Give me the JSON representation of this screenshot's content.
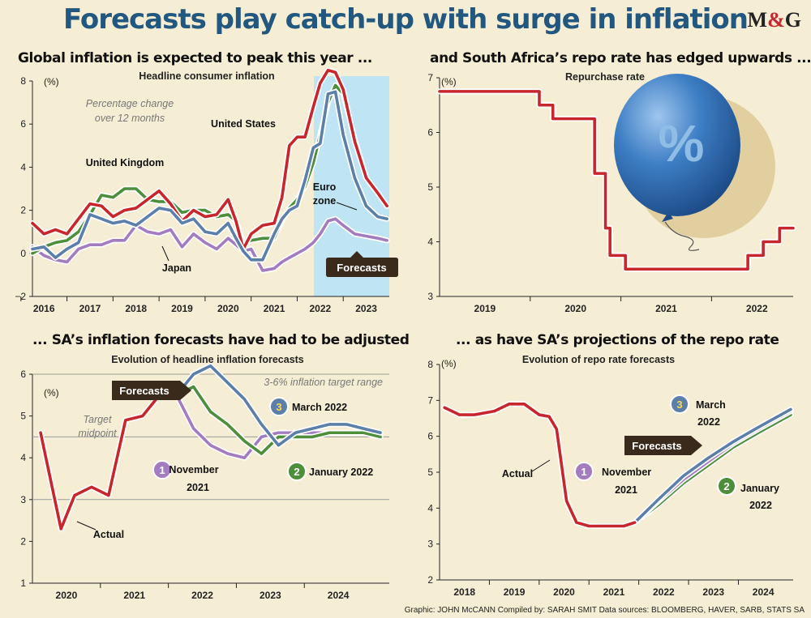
{
  "title": "Forecasts play catch-up with surge in inflation",
  "logo": {
    "m": "M",
    "amp": "&",
    "g": "G"
  },
  "credits": "Graphic: JOHN McCANN  Compiled by: SARAH SMIT  Data sources: BLOOMBERG, HAVER, SARB, STATS SA",
  "colors": {
    "background": "#f6eed4",
    "title": "#22587f",
    "red": "#c8262d",
    "blue": "#5b7fa8",
    "green": "#4d8e3b",
    "purple": "#a37cc0",
    "forecast_band": "#bfe4f4"
  },
  "panels": {
    "p1": {
      "heading": "Global inflation is expected to peak this year ...",
      "subtitle": "Headline consumer inflation",
      "unit": "(%)",
      "note1": "Percentage change",
      "note2": "over 12 months",
      "forecast_label": "Forecasts",
      "labels": {
        "uk": "United Kingdom",
        "us": "United States",
        "ez1": "Euro",
        "ez2": "zone",
        "jp": "Japan"
      },
      "y_ticks": [
        "8",
        "6",
        "4",
        "2",
        "0",
        "−2"
      ],
      "x_ticks": [
        "2016",
        "2017",
        "2018",
        "2019",
        "2020",
        "2021",
        "2022",
        "2023"
      ]
    },
    "p2": {
      "heading": "and South Africa’s repo rate has edged upwards ...",
      "subtitle": "Repurchase rate",
      "unit": "(%)",
      "balloon_symbol": "%",
      "y_ticks": [
        "7",
        "6",
        "5",
        "4",
        "3"
      ],
      "x_ticks": [
        "2019",
        "2020",
        "2021",
        "2022"
      ]
    },
    "p3": {
      "heading": "... SA’s inflation forecasts have had to be adjusted",
      "subtitle": "Evolution of headline inflation forecasts",
      "unit": "(%)",
      "target_range": "3-6% inflation target range",
      "midpoint1": "Target",
      "midpoint2": "midpoint",
      "forecast_label": "Forecasts",
      "actual_label": "Actual",
      "n1": "1",
      "n1a": "November",
      "n1b": "2021",
      "n2": "2",
      "n2a": "January 2022",
      "n3": "3",
      "n3a": "March 2022",
      "y_ticks": [
        "6",
        "5",
        "4",
        "3",
        "2",
        "1"
      ],
      "x_ticks": [
        "2020",
        "2021",
        "2022",
        "2023",
        "2024"
      ]
    },
    "p4": {
      "heading": "... as have SA’s projections of the repo rate",
      "subtitle": "Evolution of repo rate forecasts",
      "unit": "(%)",
      "forecast_label": "Forecasts",
      "actual_label": "Actual",
      "n1": "1",
      "n1a": "November",
      "n1b": "2021",
      "n2": "2",
      "n2a": "January",
      "n2b": "2022",
      "n3": "3",
      "n3a": "March",
      "n3b": "2022",
      "y_ticks": [
        "8",
        "7",
        "6",
        "5",
        "4",
        "3",
        "2"
      ],
      "x_ticks": [
        "2018",
        "2019",
        "2020",
        "2021",
        "2022",
        "2023",
        "2024"
      ]
    }
  },
  "chart_data": [
    {
      "type": "line",
      "title": "Global inflation is expected to peak this year ...",
      "subtitle": "Headline consumer inflation",
      "ylabel": "(%)",
      "ylim": [
        -2,
        8
      ],
      "xlim": [
        2015.75,
        2023.5
      ],
      "forecast_from": 2021.8,
      "series": [
        {
          "name": "United States",
          "x": [
            2015.75,
            2016,
            2016.25,
            2016.5,
            2016.75,
            2017,
            2017.25,
            2017.5,
            2017.75,
            2018,
            2018.25,
            2018.5,
            2018.75,
            2019,
            2019.25,
            2019.5,
            2019.75,
            2020,
            2020.17,
            2020.33,
            2020.5,
            2020.75,
            2021,
            2021.17,
            2021.33,
            2021.5,
            2021.67,
            2021.85,
            2022,
            2022.17,
            2022.33,
            2022.5,
            2022.75,
            2023,
            2023.25,
            2023.45
          ],
          "y": [
            1.4,
            0.9,
            1.1,
            0.9,
            1.6,
            2.3,
            2.2,
            1.7,
            2.0,
            2.1,
            2.5,
            2.9,
            2.3,
            1.5,
            2.0,
            1.7,
            1.8,
            2.5,
            1.5,
            0.2,
            0.9,
            1.3,
            1.4,
            2.6,
            5.0,
            5.4,
            5.4,
            6.8,
            7.9,
            8.5,
            8.4,
            7.6,
            5.2,
            3.5,
            2.8,
            2.2
          ]
        },
        {
          "name": "United Kingdom",
          "x": [
            2015.75,
            2016,
            2016.25,
            2016.5,
            2016.75,
            2017,
            2017.25,
            2017.5,
            2017.75,
            2018,
            2018.25,
            2018.5,
            2018.75,
            2019,
            2019.25,
            2019.5,
            2019.75,
            2020,
            2020.17,
            2020.33,
            2020.5,
            2020.75,
            2021,
            2021.17,
            2021.33,
            2021.5,
            2021.67,
            2021.85,
            2022,
            2022.17,
            2022.33,
            2022.5,
            2022.75,
            2023,
            2023.25,
            2023.45
          ],
          "y": [
            0.0,
            0.3,
            0.5,
            0.6,
            1.0,
            1.8,
            2.7,
            2.6,
            3.0,
            3.0,
            2.5,
            2.4,
            2.4,
            1.9,
            2.0,
            2.0,
            1.7,
            1.8,
            1.5,
            0.5,
            0.6,
            0.7,
            0.7,
            1.5,
            2.1,
            2.5,
            3.1,
            4.2,
            5.5,
            7.0,
            7.8,
            7.4,
            5.3,
            3.5,
            2.8,
            2.2
          ]
        },
        {
          "name": "Euro zone",
          "x": [
            2015.75,
            2016,
            2016.25,
            2016.5,
            2016.75,
            2017,
            2017.25,
            2017.5,
            2017.75,
            2018,
            2018.25,
            2018.5,
            2018.75,
            2019,
            2019.25,
            2019.5,
            2019.75,
            2020,
            2020.17,
            2020.33,
            2020.5,
            2020.75,
            2021,
            2021.17,
            2021.33,
            2021.5,
            2021.67,
            2021.85,
            2022,
            2022.17,
            2022.33,
            2022.5,
            2022.75,
            2023,
            2023.25,
            2023.45
          ],
          "y": [
            0.2,
            0.3,
            -0.2,
            0.2,
            0.5,
            1.8,
            1.6,
            1.4,
            1.5,
            1.3,
            1.7,
            2.1,
            2.0,
            1.4,
            1.6,
            1.0,
            0.9,
            1.4,
            0.7,
            0.1,
            -0.3,
            -0.3,
            0.9,
            1.6,
            2.0,
            2.2,
            3.4,
            4.9,
            5.1,
            7.4,
            7.5,
            5.5,
            3.5,
            2.2,
            1.7,
            1.6
          ]
        },
        {
          "name": "Japan",
          "x": [
            2015.75,
            2016,
            2016.25,
            2016.5,
            2016.75,
            2017,
            2017.25,
            2017.5,
            2017.75,
            2018,
            2018.25,
            2018.5,
            2018.75,
            2019,
            2019.25,
            2019.5,
            2019.75,
            2020,
            2020.17,
            2020.33,
            2020.5,
            2020.75,
            2021,
            2021.17,
            2021.33,
            2021.5,
            2021.67,
            2021.85,
            2022,
            2022.17,
            2022.33,
            2022.5,
            2022.75,
            2023,
            2023.25,
            2023.45
          ],
          "y": [
            0.3,
            -0.1,
            -0.3,
            -0.4,
            0.2,
            0.4,
            0.4,
            0.6,
            0.6,
            1.3,
            1.0,
            0.9,
            1.1,
            0.3,
            0.9,
            0.5,
            0.2,
            0.7,
            0.4,
            0.1,
            0.2,
            -0.8,
            -0.7,
            -0.4,
            -0.2,
            0.0,
            0.2,
            0.5,
            0.9,
            1.5,
            1.6,
            1.3,
            0.9,
            0.8,
            0.7,
            0.6
          ]
        }
      ]
    },
    {
      "type": "line",
      "title": "and South Africa’s repo rate has edged upwards ...",
      "subtitle": "Repurchase rate",
      "ylabel": "(%)",
      "ylim": [
        3,
        7
      ],
      "xlim": [
        2018.5,
        2022.4
      ],
      "series": [
        {
          "name": "Repurchase rate",
          "step": true,
          "x": [
            2018.5,
            2019.0,
            2019.6,
            2019.75,
            2020.04,
            2020.21,
            2020.33,
            2020.38,
            2020.55,
            2021.9,
            2022.07,
            2022.25,
            2022.4
          ],
          "y": [
            6.75,
            6.75,
            6.5,
            6.25,
            6.25,
            5.25,
            4.25,
            3.75,
            3.5,
            3.75,
            4.0,
            4.25,
            4.25
          ]
        }
      ]
    },
    {
      "type": "line",
      "title": "... SA’s inflation forecasts have had to be adjusted",
      "subtitle": "Evolution of headline inflation forecasts",
      "ylabel": "(%)",
      "ylim": [
        1,
        6
      ],
      "xlim": [
        2019.5,
        2024.75
      ],
      "annotations": [
        "3-6% inflation target range",
        "Target midpoint"
      ],
      "series": [
        {
          "name": "Actual",
          "x": [
            2019.62,
            2019.92,
            2020.12,
            2020.37,
            2020.62,
            2020.87,
            2021.12,
            2021.37,
            2021.62
          ],
          "y": [
            4.6,
            2.3,
            3.1,
            3.3,
            3.1,
            4.9,
            5.0,
            5.5,
            5.5
          ]
        },
        {
          "name": "November 2021",
          "x": [
            2021.62,
            2021.87,
            2022.12,
            2022.37,
            2022.62,
            2022.87,
            2023.12,
            2023.37,
            2023.62,
            2023.87,
            2024.12,
            2024.37,
            2024.62
          ],
          "y": [
            5.5,
            4.7,
            4.3,
            4.1,
            4.0,
            4.5,
            4.6,
            4.6,
            4.6,
            4.6,
            4.6,
            4.6,
            4.6
          ]
        },
        {
          "name": "January 2022",
          "x": [
            2021.62,
            2021.87,
            2022.12,
            2022.37,
            2022.62,
            2022.87,
            2023.12,
            2023.37,
            2023.62,
            2023.87,
            2024.12,
            2024.37,
            2024.62
          ],
          "y": [
            5.5,
            5.7,
            5.1,
            4.8,
            4.4,
            4.1,
            4.5,
            4.5,
            4.5,
            4.6,
            4.6,
            4.6,
            4.5
          ]
        },
        {
          "name": "March 2022",
          "x": [
            2021.62,
            2021.87,
            2022.12,
            2022.37,
            2022.62,
            2022.87,
            2023.12,
            2023.37,
            2023.62,
            2023.87,
            2024.12,
            2024.37,
            2024.62
          ],
          "y": [
            5.5,
            6.0,
            6.2,
            5.8,
            5.4,
            4.8,
            4.3,
            4.6,
            4.7,
            4.8,
            4.8,
            4.7,
            4.6
          ]
        }
      ]
    },
    {
      "type": "line",
      "title": "... as have SA’s projections of the repo rate",
      "subtitle": "Evolution of repo rate forecasts",
      "ylabel": "(%)",
      "ylim": [
        2,
        8
      ],
      "xlim": [
        2017.5,
        2024.6
      ],
      "series": [
        {
          "name": "Actual",
          "x": [
            2017.6,
            2017.9,
            2018.2,
            2018.6,
            2018.9,
            2019.2,
            2019.5,
            2019.7,
            2019.85,
            2020.05,
            2020.25,
            2020.5,
            2020.7,
            2021.0,
            2021.2,
            2021.42
          ],
          "y": [
            6.8,
            6.6,
            6.6,
            6.7,
            6.9,
            6.9,
            6.6,
            6.55,
            6.2,
            4.2,
            3.6,
            3.5,
            3.5,
            3.5,
            3.5,
            3.6
          ]
        },
        {
          "name": "November 2021",
          "x": [
            2021.42,
            2021.9,
            2022.4,
            2022.9,
            2023.4,
            2023.9,
            2024.55
          ],
          "y": [
            3.6,
            4.2,
            4.8,
            5.3,
            5.8,
            6.2,
            6.7
          ]
        },
        {
          "name": "January 2022",
          "x": [
            2021.42,
            2021.9,
            2022.4,
            2022.9,
            2023.4,
            2023.9,
            2024.55
          ],
          "y": [
            3.6,
            4.1,
            4.7,
            5.2,
            5.7,
            6.1,
            6.6
          ]
        },
        {
          "name": "March 2022",
          "x": [
            2021.42,
            2021.9,
            2022.4,
            2022.9,
            2023.4,
            2023.9,
            2024.55
          ],
          "y": [
            3.6,
            4.25,
            4.9,
            5.4,
            5.85,
            6.25,
            6.75
          ]
        }
      ]
    }
  ]
}
